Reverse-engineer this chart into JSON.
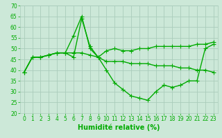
{
  "bg_color": "#cce8d8",
  "grid_color": "#aaccbb",
  "line_color": "#00aa00",
  "marker": "+",
  "markersize": 4,
  "linewidth": 1.0,
  "xlabel": "Humidité relative (%)",
  "xlabel_fontsize": 7,
  "tick_fontsize": 5.5,
  "ylim": [
    20,
    70
  ],
  "yticks": [
    20,
    25,
    30,
    35,
    40,
    45,
    50,
    55,
    60,
    65,
    70
  ],
  "xlim": [
    -0.5,
    23.5
  ],
  "xticks": [
    0,
    1,
    2,
    3,
    4,
    5,
    6,
    7,
    8,
    9,
    10,
    11,
    12,
    13,
    14,
    15,
    16,
    17,
    18,
    19,
    20,
    21,
    22,
    23
  ],
  "series": [
    [
      39,
      46,
      46,
      47,
      48,
      48,
      56,
      65,
      50,
      46,
      49,
      50,
      49,
      49,
      50,
      50,
      51,
      51,
      51,
      51,
      51,
      52,
      52,
      53
    ],
    [
      39,
      46,
      46,
      47,
      48,
      48,
      46,
      64,
      51,
      46,
      40,
      34,
      31,
      28,
      27,
      26,
      30,
      33,
      32,
      33,
      35,
      35,
      50,
      52
    ],
    [
      39,
      46,
      46,
      47,
      48,
      48,
      48,
      48,
      47,
      46,
      44,
      44,
      44,
      43,
      43,
      43,
      42,
      42,
      42,
      41,
      41,
      40,
      40,
      39
    ]
  ]
}
